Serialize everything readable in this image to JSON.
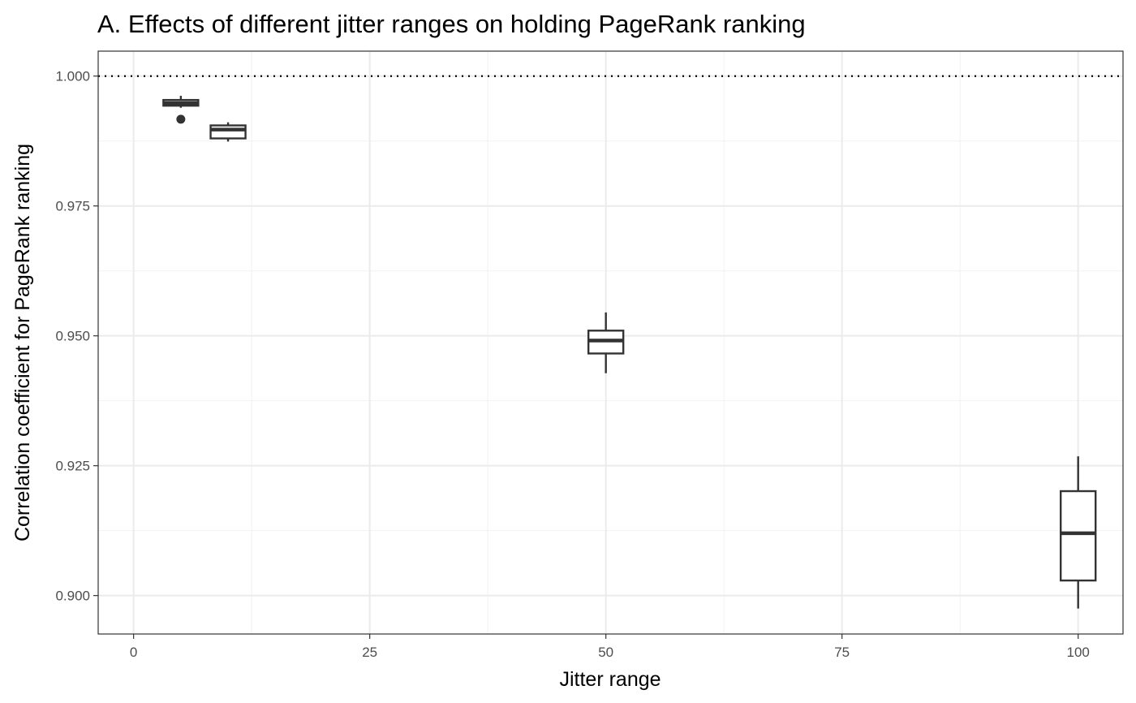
{
  "chart_data": {
    "type": "box",
    "title": "A. Effects of different jitter ranges on holding PageRank ranking",
    "xlabel": "Jitter range",
    "ylabel": "Correlation coefficient for PageRank ranking",
    "xlim": [
      -3.75,
      104.75
    ],
    "ylim": [
      0.8926,
      1.0048
    ],
    "x_ticks": [
      0,
      25,
      50,
      75,
      100
    ],
    "x_tick_labels": [
      "0",
      "25",
      "50",
      "75",
      "100"
    ],
    "y_ticks": [
      0.9,
      0.925,
      0.95,
      0.975,
      1.0
    ],
    "y_tick_labels": [
      "0.900",
      "0.925",
      "0.950",
      "0.975",
      "1.000"
    ],
    "reference_line": {
      "y": 1.0,
      "style": "dotted"
    },
    "grid": true,
    "legend": "none",
    "boxes": [
      {
        "x": 5,
        "whisker_low": 0.9939,
        "q1": 0.9943,
        "median": 0.9948,
        "q3": 0.9954,
        "whisker_high": 0.9962,
        "outliers": [
          0.9917
        ]
      },
      {
        "x": 10,
        "whisker_low": 0.9874,
        "q1": 0.988,
        "median": 0.9897,
        "q3": 0.9905,
        "whisker_high": 0.9911,
        "outliers": []
      },
      {
        "x": 50,
        "whisker_low": 0.9428,
        "q1": 0.9466,
        "median": 0.9491,
        "q3": 0.951,
        "whisker_high": 0.9545,
        "outliers": []
      },
      {
        "x": 100,
        "whisker_low": 0.8975,
        "q1": 0.9029,
        "median": 0.912,
        "q3": 0.9201,
        "whisker_high": 0.9268,
        "outliers": []
      }
    ],
    "colors": {
      "box_line": "#333333",
      "box_fill": "#ffffff",
      "grid": "#ebebeb",
      "tick_label": "#4d4d4d"
    }
  }
}
